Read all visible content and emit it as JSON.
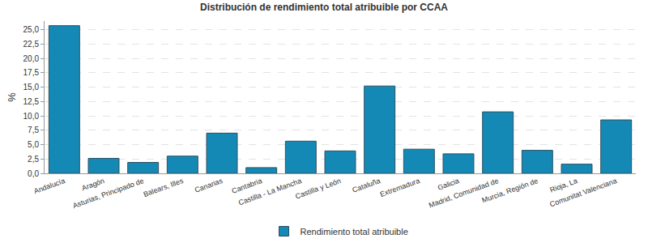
{
  "chart_data": {
    "type": "bar",
    "title": "Distribución de rendimiento total atribuible por CCAA",
    "y_label": "%",
    "categories": [
      "Andalucía",
      "Aragón",
      "Asturias, Principado de",
      "Balears, Illes",
      "Canarias",
      "Cantabria",
      "Castilla - La Mancha",
      "Castilla y León",
      "Cataluña",
      "Extremadura",
      "Galicia",
      "Madrid, Comunidad de",
      "Murcia, Región de",
      "Rioja, La",
      "Comunitat Valenciana"
    ],
    "series": [
      {
        "name": "Rendimiento total atribuible",
        "color": "#1589b5",
        "values": [
          25.7,
          2.6,
          1.9,
          3.0,
          7.0,
          1.0,
          5.6,
          3.9,
          15.2,
          4.2,
          3.4,
          10.7,
          4.0,
          1.6,
          9.3
        ]
      }
    ],
    "ylim": [
      0,
      26.5
    ],
    "yticks": [
      {
        "value": 0,
        "label": "0,0"
      },
      {
        "value": 2.5,
        "label": "2,5"
      },
      {
        "value": 5,
        "label": "5,0"
      },
      {
        "value": 7.5,
        "label": "7,5"
      },
      {
        "value": 10,
        "label": "10,0"
      },
      {
        "value": 12.5,
        "label": "12,5"
      },
      {
        "value": 15,
        "label": "15,0"
      },
      {
        "value": 17.5,
        "label": "17,5"
      },
      {
        "value": 20,
        "label": "20,0"
      },
      {
        "value": 22.5,
        "label": "22,5"
      },
      {
        "value": 25,
        "label": "25,0"
      }
    ],
    "grid": true,
    "legend": "bottom"
  }
}
